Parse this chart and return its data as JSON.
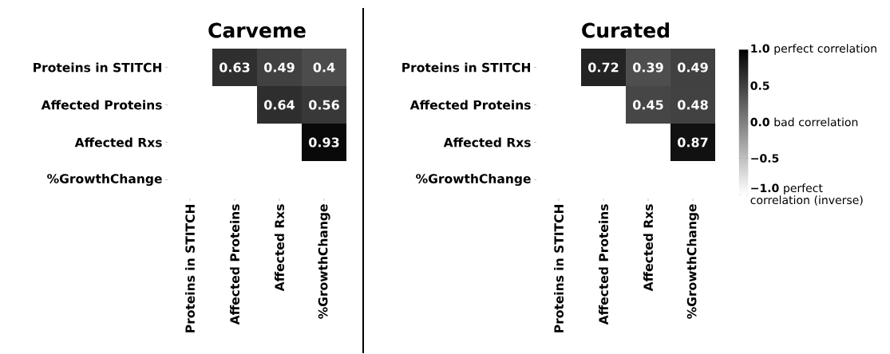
{
  "chart_data": [
    {
      "type": "heatmap",
      "title": "Carveme",
      "categories": [
        "Proteins in STITCH",
        "Affected Proteins",
        "Affected Rxs",
        "%GrowthChange"
      ],
      "y_categories": [
        "Proteins in STITCH",
        "Affected Proteins",
        "Affected Rxs",
        "%GrowthChange"
      ],
      "cells": [
        [
          null,
          0.63,
          0.49,
          0.4
        ],
        [
          null,
          null,
          0.64,
          0.56
        ],
        [
          null,
          null,
          null,
          0.93
        ],
        [
          null,
          null,
          null,
          null
        ]
      ],
      "data_labels": true
    },
    {
      "type": "heatmap",
      "title": "Curated",
      "categories": [
        "Proteins in STITCH",
        "Affected Proteins",
        "Affected Rxs",
        "%GrowthChange"
      ],
      "y_categories": [
        "Proteins in STITCH",
        "Affected Proteins",
        "Affected Rxs",
        "%GrowthChange"
      ],
      "cells": [
        [
          null,
          0.72,
          0.39,
          0.49
        ],
        [
          null,
          null,
          0.45,
          0.48
        ],
        [
          null,
          null,
          null,
          0.87
        ],
        [
          null,
          null,
          null,
          null
        ]
      ],
      "clim": [
        -1,
        1
      ],
      "data_labels": true,
      "cticks": [
        {
          "value": 1,
          "label": "**1.0** perfect correlation"
        },
        {
          "value": 0.5,
          "label": "**0.5**"
        },
        {
          "value": 0,
          "label": "**0.0** bad correlation"
        },
        {
          "value": -0.5,
          "label": "**−0.5**"
        },
        {
          "value": -1,
          "label": "**−1.0** perfect correlation (inverse)"
        }
      ]
    }
  ]
}
